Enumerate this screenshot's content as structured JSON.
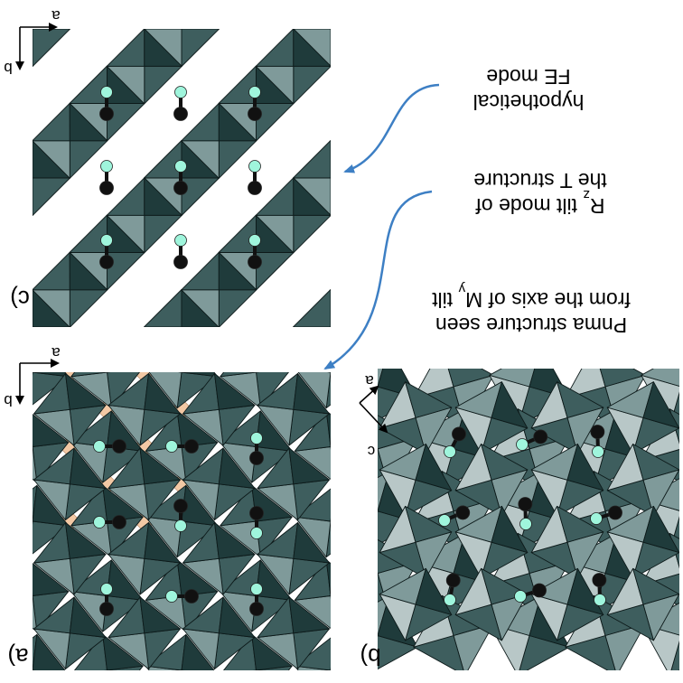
{
  "panels": {
    "c": {
      "label": "c)",
      "axes": {
        "right": "a",
        "down": "b"
      }
    },
    "a": {
      "label": "a)",
      "axes": {
        "right": "a",
        "down": "b"
      }
    },
    "b": {
      "label": "b)",
      "axes": {
        "up_right": "a",
        "down_right": "c"
      }
    }
  },
  "annotations": {
    "fe_mode": [
      "hypothetical",
      "FE mode"
    ],
    "rz_mode": [
      "R",
      "z",
      " tilt mode of",
      "the T structure"
    ],
    "pnma": [
      "Pnma structure seen",
      "from the axis of M",
      "y",
      " tilt"
    ]
  },
  "colors": {
    "octa_dark": "#1f3b3b",
    "octa_mid": "#3e5e5e",
    "octa_light": "#7f9a9a",
    "octa_pale": "#b8c7c7",
    "tetra_peach": "#f2c8a4",
    "atom_black": "#111111",
    "atom_cyan": "#9ff5dc",
    "arrow_blue": "#3d7fc4"
  }
}
